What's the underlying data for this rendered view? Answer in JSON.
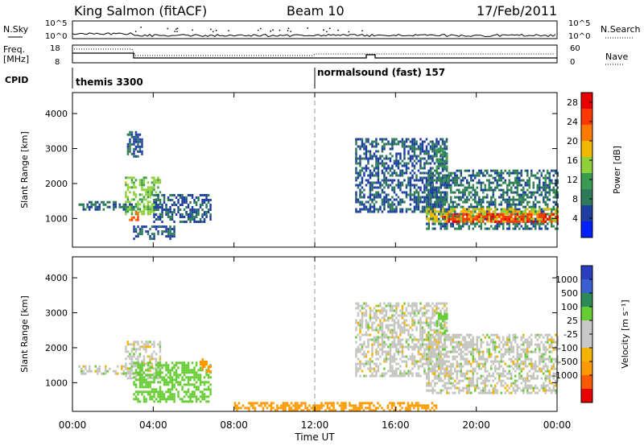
{
  "header": {
    "station": "King Salmon (fitACF)",
    "beam": "Beam 10",
    "date": "17/Feb/2011"
  },
  "sky_panel": {
    "left_label": "N.Sky",
    "right_label": "N.Search",
    "left_ticks": [
      "10^5",
      "10^0"
    ],
    "right_ticks": [
      "10^5",
      "10^0"
    ]
  },
  "freq_panel": {
    "left_label_1": "Freq.",
    "left_label_2": "[MHz]",
    "right_label": "Nave",
    "left_ticks": [
      "18",
      "8"
    ],
    "right_ticks": [
      "60",
      "0"
    ]
  },
  "cpid_panel": {
    "label": "CPID",
    "modes": [
      {
        "name": "themis 3300",
        "start_hour": 0
      },
      {
        "name": "normalsound (fast) 157",
        "start_hour": 12
      }
    ]
  },
  "time_axis": {
    "label": "Time UT",
    "ticks": [
      "00:00",
      "04:00",
      "08:00",
      "12:00",
      "16:00",
      "20:00",
      "00:00"
    ]
  },
  "colors": {
    "power_scale": [
      "#0020ff",
      "#1e3fa0",
      "#2f7a5a",
      "#3a9a4f",
      "#8fd13a",
      "#f0b800",
      "#ff7a00",
      "#ff3a00",
      "#e80000"
    ],
    "velocity_scale": [
      "#2a3fbf",
      "#3a5fd0",
      "#2e8a55",
      "#66cc33",
      "#c8c8c8",
      "#c8c8c8",
      "#ff9900",
      "#ff6a00",
      "#e83a00",
      "#e80000"
    ]
  },
  "chart_data": [
    {
      "type": "heatmap",
      "title": "Power",
      "xlabel": "Time UT",
      "ylabel": "Slant Range [km]",
      "y_ticks": [
        "1000",
        "2000",
        "3000",
        "4000"
      ],
      "ylim": [
        180,
        4600
      ],
      "xlim_hours": [
        0,
        24
      ],
      "colorbar_label": "Power [dB]",
      "colorbar_ticks": [
        "4",
        "8",
        "12",
        "16",
        "20",
        "24",
        "28"
      ],
      "colorbar_range": [
        0,
        30
      ],
      "echo_regions": [
        {
          "t0": 0.3,
          "t1": 3.0,
          "r0": 1250,
          "r1": 1500,
          "power": 6
        },
        {
          "t0": 2.6,
          "t1": 4.3,
          "r0": 1100,
          "r1": 2200,
          "power": 14
        },
        {
          "t0": 2.8,
          "t1": 3.2,
          "r0": 950,
          "r1": 1200,
          "power": 24
        },
        {
          "t0": 2.7,
          "t1": 3.4,
          "r0": 2800,
          "r1": 3500,
          "power": 5
        },
        {
          "t0": 4.0,
          "t1": 6.8,
          "r0": 900,
          "r1": 1700,
          "power": 5
        },
        {
          "t0": 3.0,
          "t1": 5.0,
          "r0": 400,
          "r1": 800,
          "power": 5
        },
        {
          "t0": 14.0,
          "t1": 18.5,
          "r0": 1200,
          "r1": 3300,
          "power": 5
        },
        {
          "t0": 17.5,
          "t1": 24.0,
          "r0": 700,
          "r1": 2400,
          "power": 7
        },
        {
          "t0": 17.5,
          "t1": 24.0,
          "r0": 900,
          "r1": 1300,
          "power": 18
        },
        {
          "t0": 18.3,
          "t1": 24.0,
          "r0": 900,
          "r1": 1150,
          "power": 27
        },
        {
          "t0": 18.0,
          "t1": 18.5,
          "r0": 2400,
          "r1": 3000,
          "power": 10
        }
      ]
    },
    {
      "type": "heatmap",
      "title": "Velocity",
      "xlabel": "Time UT",
      "ylabel": "Slant Range [km]",
      "y_ticks": [
        "1000",
        "2000",
        "3000",
        "4000"
      ],
      "ylim": [
        180,
        4600
      ],
      "xlim_hours": [
        0,
        24
      ],
      "colorbar_label": "Velocity [m s⁻¹]",
      "colorbar_ticks": [
        "1000",
        "500",
        "100",
        "25",
        "-25",
        "-100",
        "-500",
        "-1000"
      ],
      "echo_regions": [
        {
          "t0": 0.3,
          "t1": 3.0,
          "r0": 1250,
          "r1": 1500,
          "velocity": 0
        },
        {
          "t0": 2.6,
          "t1": 4.3,
          "r0": 1100,
          "r1": 2200,
          "velocity": 0
        },
        {
          "t0": 3.0,
          "t1": 6.8,
          "r0": 450,
          "r1": 1600,
          "velocity": 150
        },
        {
          "t0": 6.3,
          "t1": 6.8,
          "r0": 1300,
          "r1": 1700,
          "velocity": -300
        },
        {
          "t0": 14.0,
          "t1": 18.5,
          "r0": 1200,
          "r1": 3300,
          "velocity": 0
        },
        {
          "t0": 17.5,
          "t1": 24.0,
          "r0": 700,
          "r1": 2400,
          "velocity": 0
        },
        {
          "t0": 18.0,
          "t1": 18.5,
          "r0": 2400,
          "r1": 3000,
          "velocity": 300
        },
        {
          "t0": 8.0,
          "t1": 18.0,
          "r0": 180,
          "r1": 450,
          "velocity": -150
        }
      ]
    }
  ]
}
